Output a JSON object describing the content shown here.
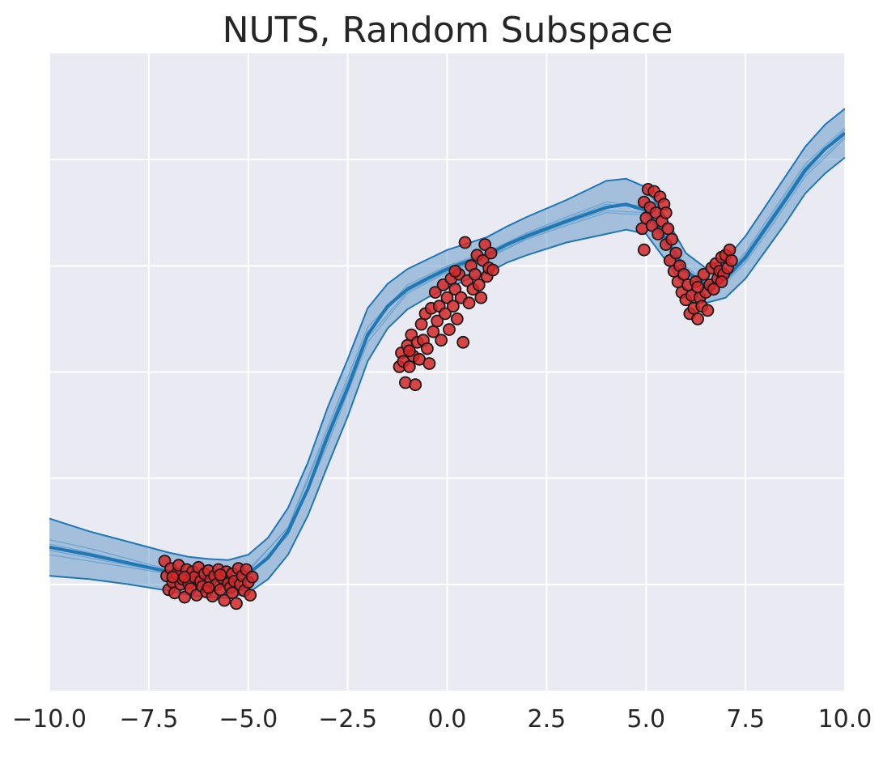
{
  "chart_data": {
    "type": "scatter",
    "title": "NUTS, Random Subspace",
    "xlabel": "",
    "ylabel": "",
    "xlim": [
      -10,
      10
    ],
    "ylim": [
      -3,
      3
    ],
    "xticks": [
      -10,
      -7.5,
      -5,
      -2.5,
      0,
      2.5,
      5,
      7.5,
      10
    ],
    "xtick_labels": [
      "−10.0",
      "−7.5",
      "−5.0",
      "−2.5",
      "0.0",
      "2.5",
      "5.0",
      "7.5",
      "10.0"
    ],
    "yticks": [
      -2,
      -1,
      0,
      1,
      2
    ],
    "ytick_labels": [
      "",
      "",
      "",
      "",
      ""
    ],
    "grid": true,
    "legend": "none",
    "colors": {
      "background": "#EAEAF2",
      "grid": "#FFFFFF",
      "band_fill": "#4E8CC2",
      "band_edge": "#1F77B4",
      "mean_line": "#1F77B4",
      "sample_line": "#5A9ACB",
      "point_fill": "#D62728",
      "point_edge": "#1A1A1A"
    },
    "series": [
      {
        "kind": "mean",
        "x": [
          -10,
          -9,
          -8,
          -7,
          -6.5,
          -6,
          -5.5,
          -5,
          -4.5,
          -4,
          -3.5,
          -3,
          -2.5,
          -2,
          -1.5,
          -1,
          -0.5,
          0,
          0.5,
          1,
          1.5,
          2,
          3,
          4,
          4.5,
          5,
          5.5,
          6,
          6.5,
          7,
          7.5,
          8,
          8.5,
          9,
          9.5,
          10
        ],
        "y": [
          -1.65,
          -1.72,
          -1.8,
          -1.88,
          -1.92,
          -1.94,
          -1.95,
          -1.9,
          -1.75,
          -1.5,
          -1.1,
          -0.6,
          -0.15,
          0.35,
          0.62,
          0.78,
          0.88,
          0.97,
          1.04,
          1.1,
          1.2,
          1.28,
          1.42,
          1.55,
          1.58,
          1.52,
          1.25,
          0.95,
          0.82,
          0.88,
          1.08,
          1.35,
          1.62,
          1.9,
          2.1,
          2.25
        ]
      },
      {
        "kind": "band_upper",
        "x": [
          -10,
          -9,
          -8,
          -7,
          -6.5,
          -6,
          -5.5,
          -5,
          -4.5,
          -4,
          -3.5,
          -3,
          -2.5,
          -2,
          -1.5,
          -1,
          -0.5,
          0,
          0.5,
          1,
          1.5,
          2,
          3,
          4,
          4.5,
          5,
          5.5,
          6,
          6.5,
          7,
          7.5,
          8,
          8.5,
          9,
          9.5,
          10
        ],
        "y": [
          -1.38,
          -1.5,
          -1.6,
          -1.7,
          -1.74,
          -1.76,
          -1.77,
          -1.72,
          -1.56,
          -1.28,
          -0.85,
          -0.33,
          0.12,
          0.6,
          0.83,
          0.97,
          1.06,
          1.15,
          1.21,
          1.27,
          1.37,
          1.46,
          1.62,
          1.8,
          1.82,
          1.74,
          1.45,
          1.12,
          0.98,
          1.06,
          1.28,
          1.56,
          1.84,
          2.12,
          2.33,
          2.48
        ]
      },
      {
        "kind": "band_lower",
        "x": [
          -10,
          -9,
          -8,
          -7,
          -6.5,
          -6,
          -5.5,
          -5,
          -4.5,
          -4,
          -3.5,
          -3,
          -2.5,
          -2,
          -1.5,
          -1,
          -0.5,
          0,
          0.5,
          1,
          1.5,
          2,
          3,
          4,
          4.5,
          5,
          5.5,
          6,
          6.5,
          7,
          7.5,
          8,
          8.5,
          9,
          9.5,
          10
        ],
        "y": [
          -1.92,
          -1.95,
          -2,
          -2.06,
          -2.1,
          -2.12,
          -2.13,
          -2.08,
          -1.95,
          -1.72,
          -1.35,
          -0.88,
          -0.42,
          0.1,
          0.41,
          0.59,
          0.7,
          0.79,
          0.87,
          0.93,
          1.03,
          1.1,
          1.22,
          1.3,
          1.34,
          1.3,
          1.05,
          0.78,
          0.65,
          0.7,
          0.88,
          1.14,
          1.4,
          1.68,
          1.87,
          2.02
        ]
      },
      {
        "kind": "sample",
        "x": [
          -10,
          -9,
          -8,
          -7,
          -6,
          -5,
          -4,
          -3,
          -2,
          -1,
          0,
          1,
          2,
          3,
          4,
          5,
          5.5,
          6,
          6.5,
          7,
          7.5,
          8,
          9,
          10
        ],
        "y": [
          -1.58,
          -1.66,
          -1.76,
          -1.86,
          -1.93,
          -1.88,
          -1.46,
          -0.52,
          0.42,
          0.82,
          1.0,
          1.13,
          1.31,
          1.46,
          1.6,
          1.56,
          1.3,
          0.99,
          0.86,
          0.92,
          1.13,
          1.41,
          1.96,
          2.3
        ]
      },
      {
        "kind": "sample",
        "x": [
          -10,
          -9,
          -8,
          -7,
          -6,
          -5,
          -4,
          -3,
          -2,
          -1,
          0,
          1,
          2,
          3,
          4,
          5,
          5.5,
          6,
          6.5,
          7,
          7.5,
          8,
          9,
          10
        ],
        "y": [
          -1.72,
          -1.78,
          -1.84,
          -1.9,
          -1.96,
          -1.92,
          -1.54,
          -0.68,
          0.28,
          0.74,
          0.94,
          1.07,
          1.25,
          1.38,
          1.5,
          1.48,
          1.2,
          0.91,
          0.78,
          0.84,
          1.03,
          1.29,
          1.84,
          2.2
        ]
      },
      {
        "kind": "sample",
        "x": [
          -10,
          -9,
          -8,
          -7,
          -6,
          -5,
          -4,
          -3,
          -2,
          -1,
          0,
          1,
          2,
          3,
          4,
          5,
          5.5,
          6,
          6.5,
          7,
          7.5,
          8,
          9,
          10
        ],
        "y": [
          -1.62,
          -1.7,
          -1.79,
          -1.87,
          -1.92,
          -1.86,
          -1.47,
          -0.56,
          0.38,
          0.8,
          0.99,
          1.12,
          1.3,
          1.44,
          1.58,
          1.54,
          1.28,
          0.97,
          0.84,
          0.9,
          1.11,
          1.38,
          1.93,
          2.28
        ]
      },
      {
        "kind": "sample",
        "x": [
          -10,
          -9,
          -8,
          -7,
          -6,
          -5,
          -4,
          -3,
          -2,
          -1,
          0,
          1,
          2,
          3,
          4,
          5,
          5.5,
          6,
          6.5,
          7,
          7.5,
          8,
          9,
          10
        ],
        "y": [
          -1.68,
          -1.75,
          -1.82,
          -1.89,
          -1.95,
          -1.91,
          -1.52,
          -0.64,
          0.32,
          0.76,
          0.95,
          1.08,
          1.26,
          1.4,
          1.52,
          1.5,
          1.22,
          0.93,
          0.8,
          0.86,
          1.05,
          1.32,
          1.87,
          2.22
        ]
      },
      {
        "kind": "observations",
        "points": [
          [
            -7.1,
            -1.78
          ],
          [
            -7.05,
            -1.92
          ],
          [
            -7.0,
            -2.05
          ],
          [
            -6.95,
            -1.85
          ],
          [
            -6.9,
            -1.98
          ],
          [
            -6.85,
            -2.08
          ],
          [
            -6.8,
            -1.9
          ],
          [
            -6.75,
            -1.82
          ],
          [
            -6.7,
            -2.0
          ],
          [
            -6.65,
            -1.95
          ],
          [
            -6.6,
            -2.12
          ],
          [
            -6.55,
            -1.86
          ],
          [
            -6.5,
            -1.99
          ],
          [
            -6.45,
            -2.04
          ],
          [
            -6.4,
            -1.88
          ],
          [
            -6.35,
            -1.93
          ],
          [
            -6.3,
            -2.1
          ],
          [
            -6.25,
            -1.84
          ],
          [
            -6.2,
            -1.97
          ],
          [
            -6.15,
            -2.02
          ],
          [
            -6.1,
            -1.9
          ],
          [
            -6.05,
            -2.07
          ],
          [
            -6.0,
            -1.87
          ],
          [
            -5.95,
            -1.96
          ],
          [
            -5.9,
            -2.11
          ],
          [
            -5.85,
            -1.92
          ],
          [
            -5.8,
            -2.0
          ],
          [
            -5.75,
            -1.86
          ],
          [
            -5.7,
            -2.05
          ],
          [
            -5.65,
            -1.94
          ],
          [
            -5.6,
            -2.15
          ],
          [
            -5.55,
            -1.88
          ],
          [
            -5.5,
            -1.99
          ],
          [
            -5.45,
            -2.03
          ],
          [
            -5.4,
            -1.9
          ],
          [
            -5.35,
            -1.97
          ],
          [
            -5.3,
            -2.18
          ],
          [
            -5.25,
            -1.85
          ],
          [
            -5.2,
            -2.0
          ],
          [
            -5.15,
            -1.92
          ],
          [
            -5.1,
            -2.06
          ],
          [
            -5.05,
            -1.86
          ],
          [
            -5.0,
            -1.98
          ],
          [
            -4.95,
            -2.1
          ],
          [
            -4.9,
            -1.93
          ],
          [
            -6.6,
            -1.93
          ],
          [
            -6.0,
            -2.03
          ],
          [
            -5.4,
            -2.08
          ],
          [
            -6.9,
            -1.93
          ],
          [
            -5.7,
            -1.91
          ],
          [
            -1.2,
            0.05
          ],
          [
            -1.15,
            0.18
          ],
          [
            -1.1,
            0.1
          ],
          [
            -1.05,
            -0.1
          ],
          [
            -1.0,
            0.25
          ],
          [
            -0.95,
            0.05
          ],
          [
            -0.9,
            0.35
          ],
          [
            -0.85,
            0.15
          ],
          [
            -0.8,
            -0.12
          ],
          [
            -0.75,
            0.28
          ],
          [
            -0.7,
            0.12
          ],
          [
            -0.65,
            0.45
          ],
          [
            -0.6,
            0.3
          ],
          [
            -0.55,
            0.55
          ],
          [
            -0.5,
            0.22
          ],
          [
            -0.45,
            0.08
          ],
          [
            -0.4,
            0.6
          ],
          [
            -0.35,
            0.38
          ],
          [
            -0.3,
            0.75
          ],
          [
            -0.25,
            0.48
          ],
          [
            -0.2,
            0.62
          ],
          [
            -0.15,
            0.3
          ],
          [
            -0.1,
            0.82
          ],
          [
            -0.05,
            0.55
          ],
          [
            0.0,
            0.7
          ],
          [
            0.05,
            0.4
          ],
          [
            0.1,
            0.88
          ],
          [
            0.15,
            0.62
          ],
          [
            0.2,
            0.78
          ],
          [
            0.25,
            0.5
          ],
          [
            0.3,
            0.92
          ],
          [
            0.35,
            0.7
          ],
          [
            0.4,
            0.28
          ],
          [
            0.45,
            1.22
          ],
          [
            0.5,
            0.86
          ],
          [
            0.55,
            0.65
          ],
          [
            0.6,
            1.0
          ],
          [
            0.65,
            0.78
          ],
          [
            0.7,
            0.92
          ],
          [
            0.75,
            1.1
          ],
          [
            0.8,
            0.82
          ],
          [
            0.85,
            0.7
          ],
          [
            0.9,
            1.05
          ],
          [
            0.95,
            1.2
          ],
          [
            1.0,
            0.9
          ],
          [
            1.05,
            0.98
          ],
          [
            1.1,
            1.12
          ],
          [
            1.15,
            0.96
          ],
          [
            -0.95,
            0.2
          ],
          [
            0.2,
            0.95
          ],
          [
            4.9,
            1.35
          ],
          [
            4.95,
            1.6
          ],
          [
            5.0,
            1.45
          ],
          [
            5.05,
            1.72
          ],
          [
            5.1,
            1.55
          ],
          [
            5.15,
            1.38
          ],
          [
            5.2,
            1.7
          ],
          [
            5.25,
            1.5
          ],
          [
            5.3,
            1.3
          ],
          [
            5.35,
            1.65
          ],
          [
            5.4,
            1.42
          ],
          [
            5.45,
            1.58
          ],
          [
            5.5,
            1.2
          ],
          [
            5.55,
            1.35
          ],
          [
            5.6,
            1.05
          ],
          [
            5.65,
            1.25
          ],
          [
            5.7,
            0.95
          ],
          [
            5.75,
            1.12
          ],
          [
            5.8,
            0.85
          ],
          [
            5.85,
            1.0
          ],
          [
            5.9,
            0.75
          ],
          [
            5.95,
            0.92
          ],
          [
            6.0,
            0.68
          ],
          [
            6.05,
            0.82
          ],
          [
            6.1,
            0.55
          ],
          [
            6.15,
            0.72
          ],
          [
            6.2,
            0.6
          ],
          [
            6.25,
            0.85
          ],
          [
            6.3,
            0.5
          ],
          [
            6.35,
            0.7
          ],
          [
            6.4,
            0.62
          ],
          [
            6.45,
            0.92
          ],
          [
            6.5,
            0.75
          ],
          [
            6.55,
            0.58
          ],
          [
            6.6,
            0.82
          ],
          [
            6.65,
            0.98
          ],
          [
            6.7,
            0.78
          ],
          [
            6.75,
            1.02
          ],
          [
            6.8,
            0.88
          ],
          [
            6.85,
            0.95
          ],
          [
            6.9,
            1.08
          ],
          [
            6.95,
            0.92
          ],
          [
            7.0,
            1.1
          ],
          [
            7.05,
            0.98
          ],
          [
            7.1,
            1.15
          ],
          [
            7.15,
            1.05
          ],
          [
            4.95,
            1.15
          ],
          [
            5.5,
            1.5
          ],
          [
            6.3,
            0.8
          ],
          [
            6.9,
            0.85
          ]
        ]
      }
    ]
  }
}
